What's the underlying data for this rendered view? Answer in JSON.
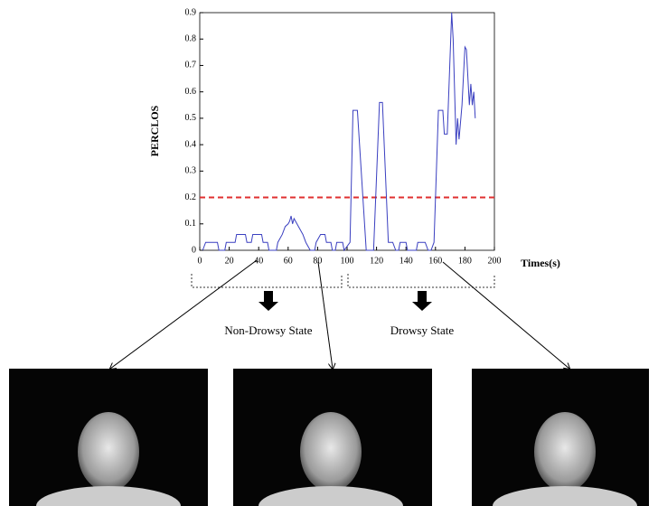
{
  "chart_data": {
    "type": "line",
    "ylabel": "PERCLOS",
    "xlabel": "Times(s)",
    "x": [
      2,
      4,
      12,
      13,
      17,
      18,
      24,
      25,
      31,
      32,
      35,
      36,
      42,
      43,
      46,
      47,
      52,
      53,
      56,
      58,
      60,
      61,
      62,
      63,
      64,
      66,
      68,
      70,
      72,
      75,
      78,
      79,
      82,
      85,
      86,
      89,
      90,
      92,
      93,
      97,
      98,
      102,
      104,
      107,
      113,
      118,
      122,
      124,
      128,
      131,
      133,
      135,
      136,
      140,
      141,
      147,
      148,
      153,
      155,
      157,
      159,
      162,
      165,
      166,
      168,
      171,
      172,
      174,
      175,
      176,
      178,
      180,
      181,
      183,
      184,
      185,
      186,
      187
    ],
    "values": [
      0,
      0.03,
      0.03,
      0,
      0,
      0.03,
      0.03,
      0.06,
      0.06,
      0.03,
      0.03,
      0.06,
      0.06,
      0.03,
      0.03,
      0,
      0,
      0.03,
      0.06,
      0.09,
      0.1,
      0.11,
      0.13,
      0.1,
      0.12,
      0.1,
      0.08,
      0.06,
      0.03,
      0,
      0,
      0.03,
      0.06,
      0.06,
      0.03,
      0.03,
      0,
      0,
      0.03,
      0.03,
      0,
      0.03,
      0.53,
      0.53,
      0,
      0,
      0.56,
      0.56,
      0.03,
      0.03,
      0,
      0,
      0.03,
      0.03,
      0,
      0,
      0.03,
      0.03,
      0,
      0,
      0.03,
      0.53,
      0.53,
      0.44,
      0.44,
      0.9,
      0.8,
      0.4,
      0.5,
      0.42,
      0.55,
      0.77,
      0.76,
      0.55,
      0.63,
      0.55,
      0.6,
      0.5
    ],
    "color": "#3a3fc0",
    "threshold": 0.2,
    "threshold_color": "#e03030",
    "xlim": [
      0,
      200
    ],
    "xticks": [
      0,
      20,
      40,
      60,
      80,
      100,
      120,
      140,
      160,
      180,
      200
    ],
    "ylim": [
      0,
      0.9
    ],
    "yticks": [
      0,
      0.1,
      0.2,
      0.3,
      0.4,
      0.5,
      0.6,
      0.7,
      0.8,
      0.9
    ],
    "states": [
      "Non-Drowsy State",
      "Drowsy State"
    ]
  }
}
